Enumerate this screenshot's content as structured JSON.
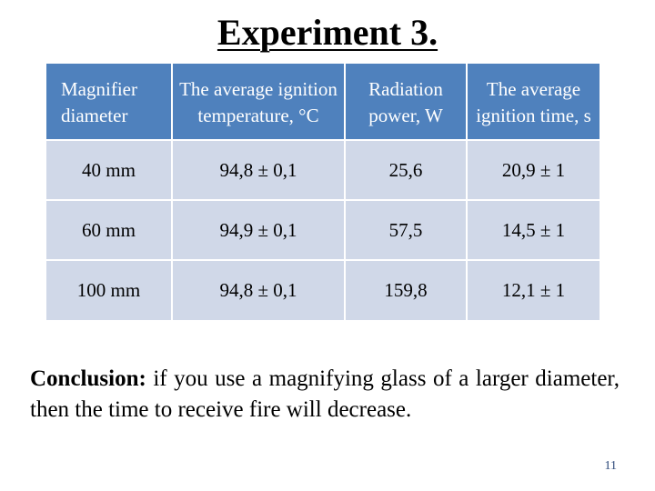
{
  "slide": {
    "title": "Experiment 3.",
    "page_number": "11"
  },
  "table": {
    "headers": [
      "Magnifier diameter",
      "The average ignition temperature, °C",
      "Radiation power, W",
      "The average ignition time, s"
    ],
    "rows": [
      [
        "40 mm",
        "94,8 ± 0,1",
        "25,6",
        "20,9 ± 1"
      ],
      [
        "60 mm",
        "94,9 ± 0,1",
        "57,5",
        "14,5 ± 1"
      ],
      [
        "100 mm",
        "94,8 ± 0,1",
        "159,8",
        "12,1 ± 1"
      ]
    ]
  },
  "conclusion": {
    "label": "Conclusion:",
    "text": " if you use a magnifying glass of a larger diameter, then the time to receive fire will decrease."
  },
  "colors": {
    "header_background": "#4f81bd",
    "row_background": "#d0d8e8",
    "page_number": "#2e4a7a"
  }
}
